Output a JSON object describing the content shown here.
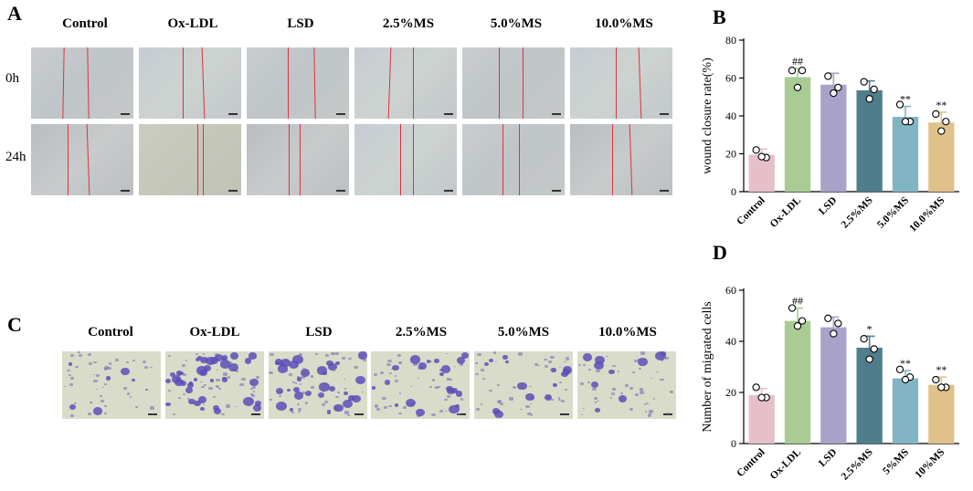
{
  "panels": {
    "A": "A",
    "B": "B",
    "C": "C",
    "D": "D"
  },
  "panelA": {
    "columns": [
      "Control",
      "Ox-LDL",
      "LSD",
      "2.5%MS",
      "5.0%MS",
      "10.0%MS"
    ],
    "rows": [
      "0h",
      "24h"
    ]
  },
  "panelC": {
    "columns": [
      "Control",
      "Ox-LDL",
      "LSD",
      "2.5%MS",
      "5.0%MS",
      "10.0%MS"
    ]
  },
  "chart_data": [
    {
      "panel": "B",
      "type": "bar",
      "categories": [
        "Control",
        "Ox-LDL",
        "LSD",
        "2.5%MS",
        "5.0%MS",
        "10.0%MS"
      ],
      "values": [
        19.5,
        60.5,
        56.5,
        53.5,
        39.5,
        36.5
      ],
      "errors": [
        3,
        4.5,
        6,
        5,
        5.5,
        5.5
      ],
      "points": [
        [
          22,
          18,
          18.5
        ],
        [
          64,
          64,
          55
        ],
        [
          61,
          55,
          52
        ],
        [
          58,
          54,
          49
        ],
        [
          46,
          37,
          37
        ],
        [
          41,
          37,
          32
        ]
      ],
      "annotations": [
        "",
        "##",
        "",
        "",
        "**",
        "**"
      ],
      "ylabel": "wound closure rate(%)",
      "ylim": [
        0,
        80
      ],
      "yticks": [
        0,
        20,
        40,
        60,
        80
      ],
      "colors": [
        "#e6c0c8",
        "#a8cc94",
        "#a7a3c9",
        "#4f7d8c",
        "#82b5c4",
        "#e0c189"
      ]
    },
    {
      "panel": "D",
      "type": "bar",
      "categories": [
        "Control",
        "Ox-LDL",
        "LSD",
        "2.5%MS",
        "5%MS",
        "10%MS"
      ],
      "values": [
        19,
        48,
        45.5,
        37.5,
        25.5,
        23
      ],
      "errors": [
        2.5,
        5,
        4,
        4.5,
        3,
        3
      ],
      "points": [
        [
          22,
          18,
          18
        ],
        [
          53,
          48,
          46
        ],
        [
          49,
          47,
          43
        ],
        [
          41,
          37,
          33
        ],
        [
          29,
          26,
          25
        ],
        [
          25,
          22,
          22
        ]
      ],
      "annotations": [
        "",
        "##",
        "",
        "*",
        "**",
        "**"
      ],
      "ylabel": "Number of migrated cells",
      "ylim": [
        0,
        60
      ],
      "yticks": [
        0,
        20,
        40,
        60
      ],
      "colors": [
        "#e6c0c8",
        "#a8cc94",
        "#a7a3c9",
        "#4f7d8c",
        "#82b5c4",
        "#e0c189"
      ]
    }
  ]
}
